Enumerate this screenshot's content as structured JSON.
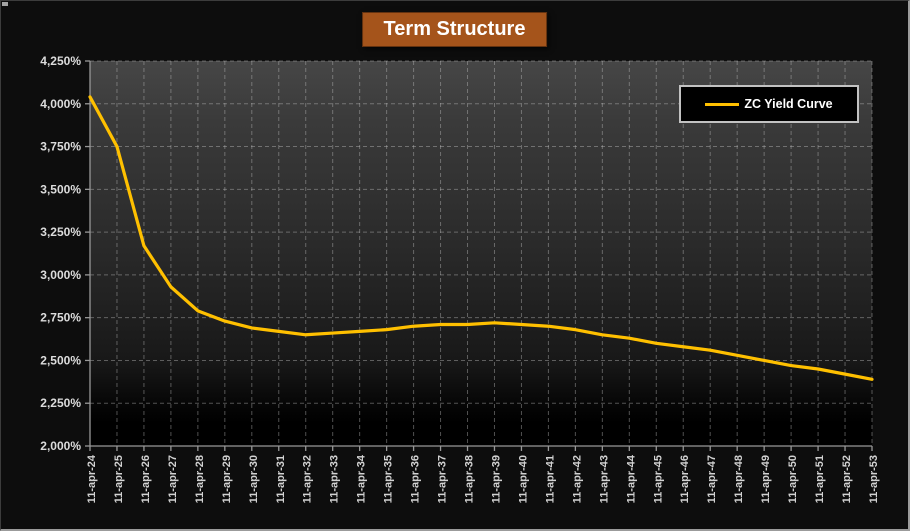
{
  "window": {
    "background_color": "#0d0d0d",
    "frame_border_color": "#9b9b9b"
  },
  "header": {
    "title": "Term Structure",
    "title_bg_color": "#A5541B",
    "title_text_color": "#FFFFFF"
  },
  "legend": {
    "label": "ZC Yield Curve",
    "line_color": "#FFC000",
    "bg_color": "#000000",
    "border_color": "#C2C2C2",
    "text_color": "#FFFFFF",
    "position": "top-right"
  },
  "chart_data": {
    "type": "line",
    "title": "Term Structure",
    "xlabel": "",
    "ylabel": "",
    "categories": [
      "11-apr-24",
      "11-apr-25",
      "11-apr-26",
      "11-apr-27",
      "11-apr-28",
      "11-apr-29",
      "11-apr-30",
      "11-apr-31",
      "11-apr-32",
      "11-apr-33",
      "11-apr-34",
      "11-apr-35",
      "11-apr-36",
      "11-apr-37",
      "11-apr-38",
      "11-apr-39",
      "11-apr-40",
      "11-apr-41",
      "11-apr-42",
      "11-apr-43",
      "11-apr-44",
      "11-apr-45",
      "11-apr-46",
      "11-apr-47",
      "11-apr-48",
      "11-apr-49",
      "11-apr-50",
      "11-apr-51",
      "11-apr-52",
      "11-apr-53"
    ],
    "series": [
      {
        "name": "ZC Yield Curve",
        "color": "#FFC000",
        "values": [
          4.04,
          3.75,
          3.17,
          2.93,
          2.79,
          2.73,
          2.69,
          2.67,
          2.65,
          2.66,
          2.67,
          2.68,
          2.7,
          2.71,
          2.71,
          2.72,
          2.71,
          2.7,
          2.68,
          2.65,
          2.63,
          2.6,
          2.58,
          2.56,
          2.53,
          2.5,
          2.47,
          2.45,
          2.42,
          2.39
        ]
      }
    ],
    "yticks": [
      {
        "value": 4.25,
        "label": "4,250%"
      },
      {
        "value": 4.0,
        "label": "4,000%"
      },
      {
        "value": 3.75,
        "label": "3,750%"
      },
      {
        "value": 3.5,
        "label": "3,500%"
      },
      {
        "value": 3.25,
        "label": "3,250%"
      },
      {
        "value": 3.0,
        "label": "3,000%"
      },
      {
        "value": 2.75,
        "label": "2,750%"
      },
      {
        "value": 2.5,
        "label": "2,500%"
      },
      {
        "value": 2.25,
        "label": "2,250%"
      },
      {
        "value": 2.0,
        "label": "2,000%"
      }
    ],
    "ylim": [
      2.0,
      4.25
    ],
    "grid": "dashed-horizontal-and-vertical",
    "legend_position": "top-right",
    "x_tick_label_rotation_deg": -90,
    "plot_bg_gradient_top": "#464646",
    "plot_bg_gradient_bottom": "#000000",
    "axis_color": "#989898",
    "tick_label_color": "#DCDCDC"
  }
}
